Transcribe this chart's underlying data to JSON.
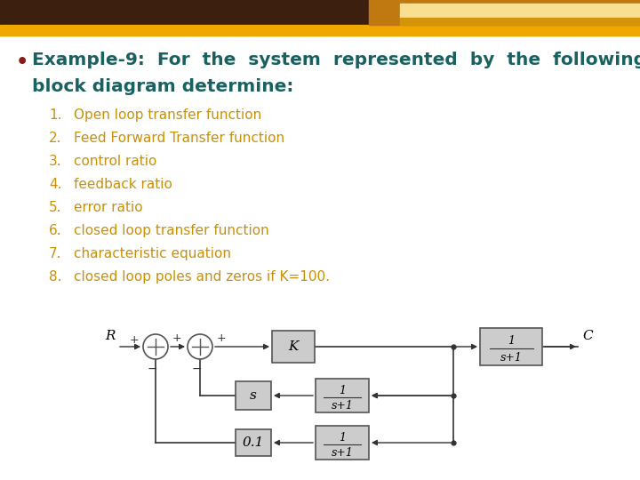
{
  "bg_color": "#ffffff",
  "header_dark_color": "#3d1f10",
  "header_gold_color": "#f0a800",
  "header_light_gold": "#ffd878",
  "bullet_color": "#8b1a1a",
  "title_color": "#1a6060",
  "list_color": "#c8900a",
  "list_items": [
    "Open loop transfer function",
    "Feed Forward Transfer function",
    "control ratio",
    "feedback ratio",
    "error ratio",
    "closed loop transfer function",
    "characteristic equation",
    "closed loop poles and zeros if K=100."
  ],
  "box_fill": "#cccccc",
  "box_edge": "#555555",
  "line_color": "#333333"
}
